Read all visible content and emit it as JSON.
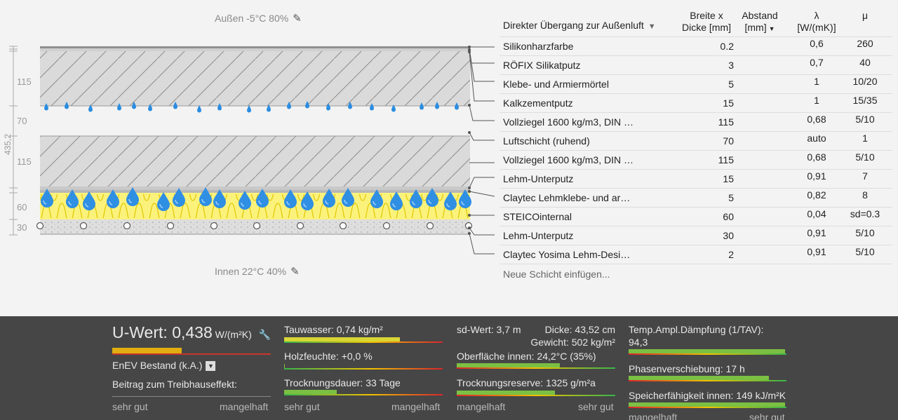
{
  "diagram": {
    "outside_label": "Außen -5°C 80%",
    "inside_label": "Innen 22°C 40%",
    "dims": [
      "115",
      "70",
      "115",
      "60",
      "30"
    ],
    "total_dim": "435,2",
    "edit_icon": "pencil-icon"
  },
  "table": {
    "title": "Direkter Übergang zur Außenluft",
    "col_thickness": "Breite x Dicke [mm]",
    "col_gap": "Abstand [mm]",
    "col_lambda": "λ [W/(mK)]",
    "col_mu": "μ",
    "rows": [
      {
        "name": "Silikonharzfarbe",
        "thickness": "0.2",
        "lambda": "0,6",
        "mu": "260"
      },
      {
        "name": "RÖFIX Silikatputz",
        "thickness": "3",
        "lambda": "0,7",
        "mu": "40"
      },
      {
        "name": "Klebe- und Armiermörtel",
        "thickness": "5",
        "lambda": "1",
        "mu": "10/20"
      },
      {
        "name": "Kalkzementputz",
        "thickness": "15",
        "lambda": "1",
        "mu": "15/35"
      },
      {
        "name": "Vollziegel 1600 kg/m3, DIN …",
        "thickness": "115",
        "lambda": "0,68",
        "mu": "5/10"
      },
      {
        "name": "Luftschicht (ruhend)",
        "thickness": "70",
        "lambda": "auto",
        "mu": "1"
      },
      {
        "name": "Vollziegel 1600 kg/m3, DIN …",
        "thickness": "115",
        "lambda": "0,68",
        "mu": "5/10"
      },
      {
        "name": "Lehm-Unterputz",
        "thickness": "15",
        "lambda": "0,91",
        "mu": "7"
      },
      {
        "name": "Claytec Lehmklebe- und ar…",
        "thickness": "5",
        "lambda": "0,82",
        "mu": "8"
      },
      {
        "name": "STEICOinternal",
        "thickness": "60",
        "lambda": "0,04",
        "mu": "sd=0.3"
      },
      {
        "name": "Lehm-Unterputz",
        "thickness": "30",
        "lambda": "0,91",
        "mu": "5/10"
      },
      {
        "name": "Claytec Yosima Lehm-Desi…",
        "thickness": "2",
        "lambda": "0,91",
        "mu": "5/10"
      }
    ],
    "new_layer": "Neue Schicht einfügen..."
  },
  "results": {
    "u_label": "U-Wert: ",
    "u_value": "0,438",
    "u_unit": "W/(m²K)",
    "u_bar_fraction": 0.44,
    "standard": "EnEV Bestand (k.A.)",
    "greenhouse": "Beitrag zum Treibhauseffekt:",
    "scale_good": "sehr gut",
    "scale_bad": "mangelhaft",
    "condensate": "Tauwasser: 0,74 kg/m²",
    "condensate_fraction": 0.73,
    "wood_moisture": "Holzfeuchte: +0,0 %",
    "wood_fraction": 0.005,
    "drying_time": "Trocknungsdauer: 33 Tage",
    "drying_fraction": 0.33,
    "sd_value": "sd-Wert: 3,7 m",
    "thickness": "Dicke: 43,52 cm",
    "weight": "Gewicht: 502 kg/m²",
    "surface_inside": "Oberfläche innen: 24,2°C (35%)",
    "surface_fraction": 0.65,
    "drying_reserve": "Trocknungsreserve: 1325 g/m²a",
    "reserve_fraction": 0.62,
    "temp_damping": "Temp.Ampl.Dämpfung (1/TAV):",
    "temp_damping_value": "94,3",
    "damping_fraction": 0.99,
    "phase_shift": "Phasenverschiebung: 17 h",
    "phase_fraction": 0.89,
    "storage": "Speicherfähigkeit innen: 149 kJ/m²K",
    "storage_fraction": 0.99,
    "scale_bad_2": "mangelhaft",
    "scale_good_2": "sehr gut",
    "scale_bad_3": "mangelhaft",
    "scale_good_3": "sehr gut"
  }
}
